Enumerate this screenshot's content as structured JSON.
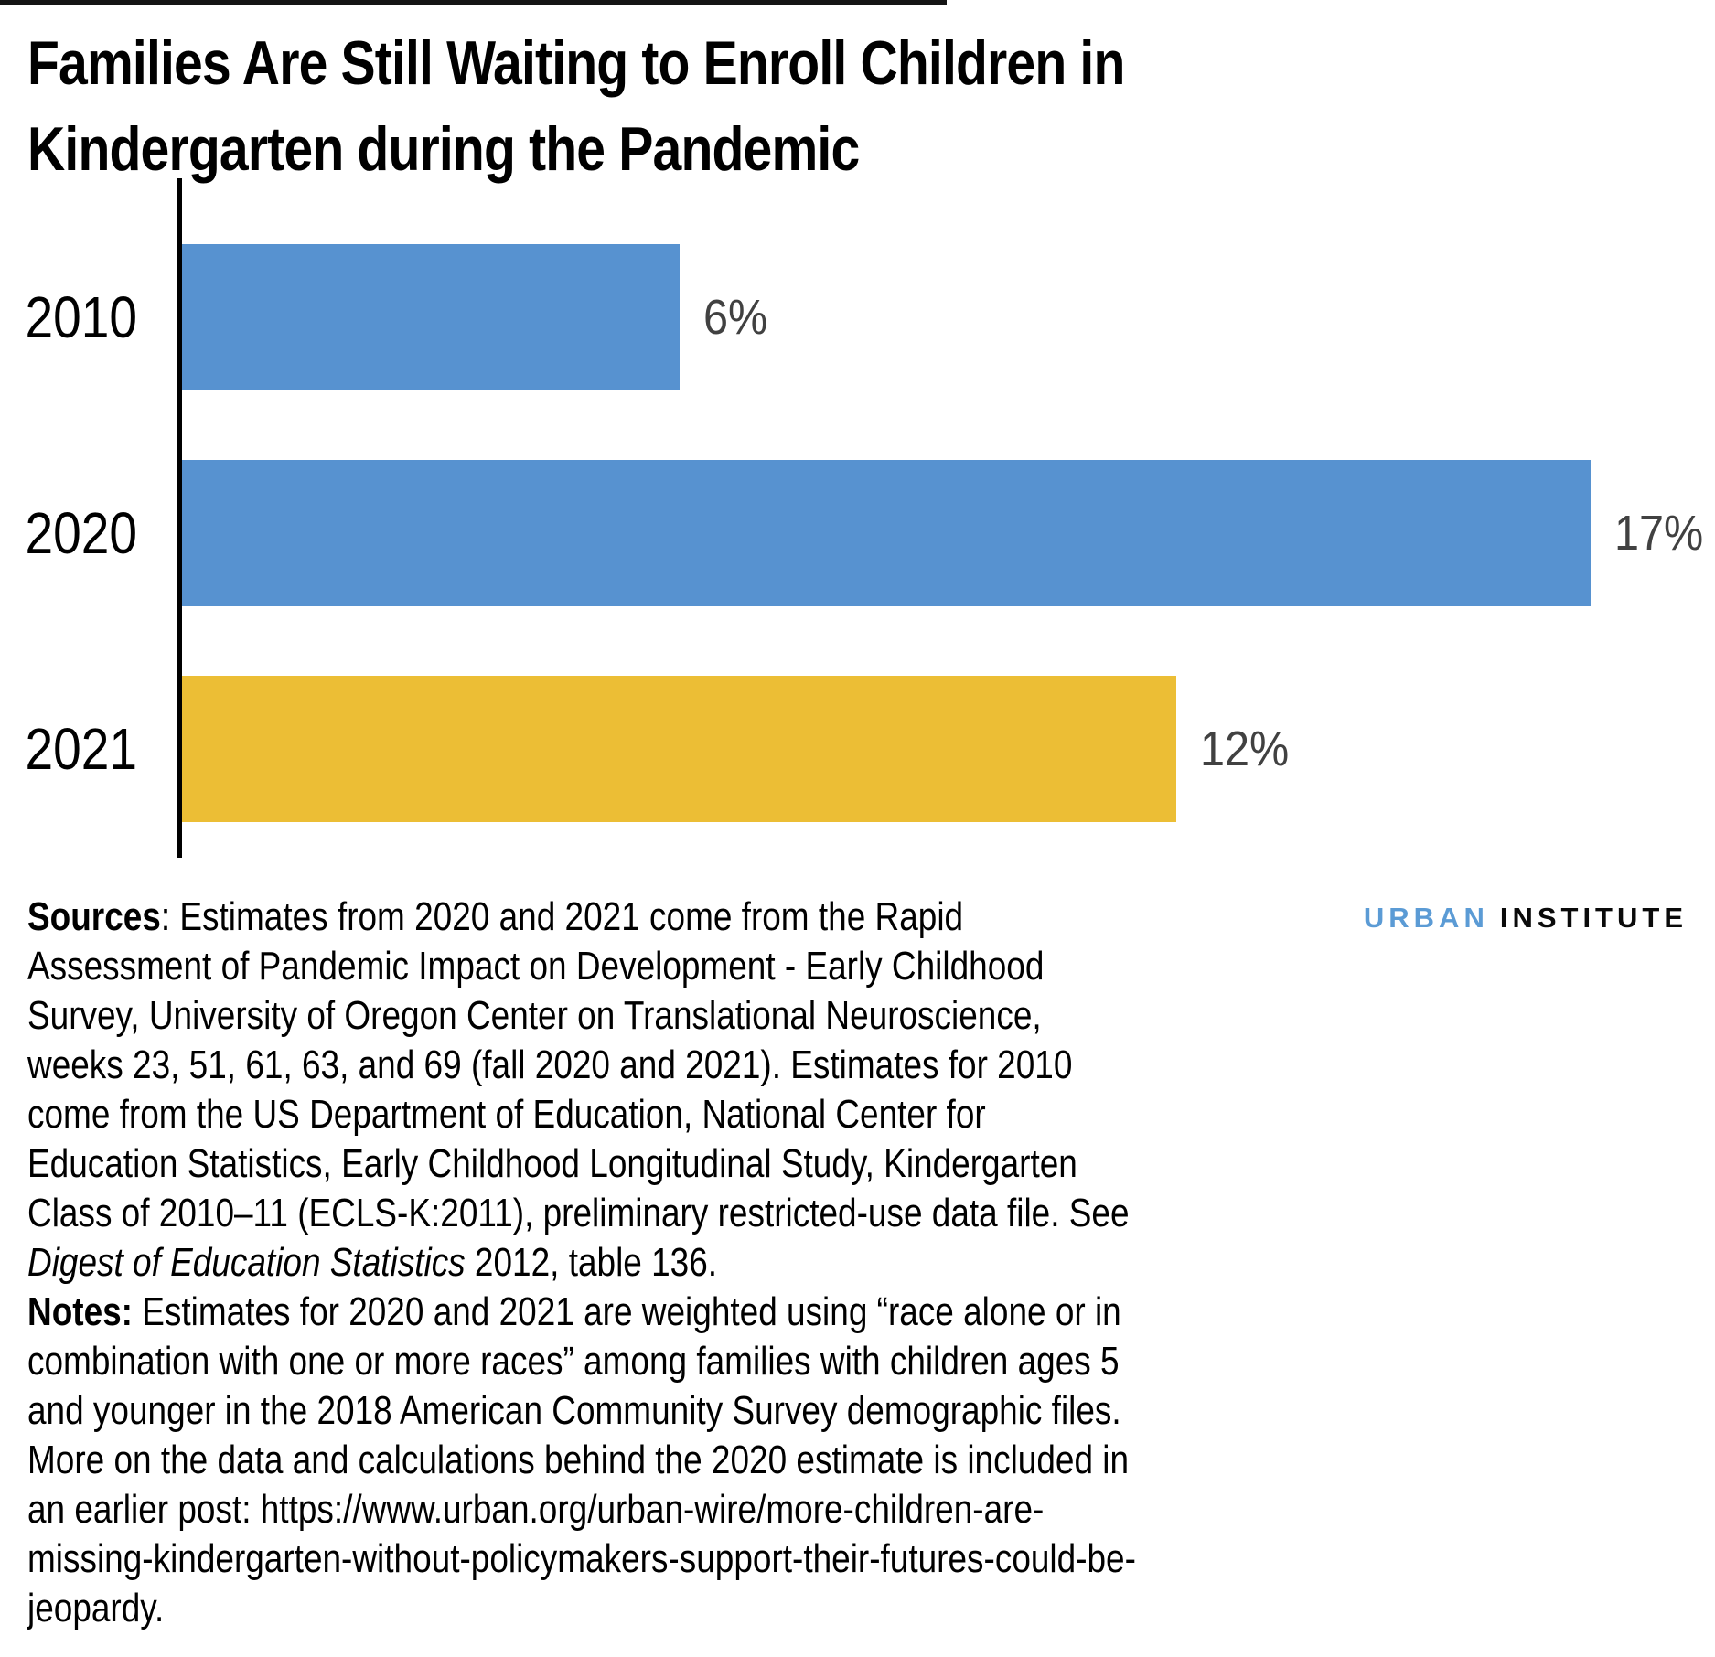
{
  "title": {
    "lines": [
      "Families Are Still Waiting to Enroll Children in",
      "Kindergarten during the Pandemic"
    ]
  },
  "chart_data": {
    "type": "bar",
    "orientation": "horizontal",
    "title": "Families Are Still Waiting to Enroll Children in Kindergarten during the Pandemic",
    "categories": [
      "2010",
      "2020",
      "2021"
    ],
    "values": [
      6,
      17,
      12
    ],
    "value_labels": [
      "6%",
      "17%",
      "12%"
    ],
    "bar_colors": [
      "#5792d0",
      "#5792d0",
      "#ecbe35"
    ],
    "xlabel": "",
    "ylabel": "",
    "xlim": [
      0,
      18.5
    ],
    "grid": false,
    "legend": "none",
    "value_label_color": "#414141",
    "axis_line_color": "#000000"
  },
  "footer": {
    "sources_label": "Sources",
    "sources_text_1": ": Estimates from 2020 and 2021 come from the Rapid Assessment of Pandemic Impact on Development - Early Childhood Survey, University of Oregon Center on Translational Neuroscience, weeks 23, 51, 61, 63, and 69 (fall 2020 and 2021). Estimates for 2010 come from the US Department of Education, National Center for Education Statistics, Early Childhood Longitudinal Study, Kindergarten Class of 2010–11 (ECLS-K:2011), preliminary restricted-use data file. See ",
    "sources_italic": "Digest of Education Statistics",
    "sources_text_2": " 2012, table 136.",
    "notes_label": "Notes:",
    "notes_text": " Estimates for 2020 and 2021 are weighted using “race alone or in combination with one or more races” among families with children ages 5 and younger in the 2018 American Community Survey demographic files. More on the data and calculations behind the 2020 estimate is included in an earlier post: https://www.urban.org/urban-wire/more-children-are-missing-kindergarten-without-policymakers-support-their-futures-could-be-jeopardy."
  },
  "logo": {
    "urban": "URBAN",
    "institute": "INSTITUTE",
    "urban_color": "#5b9bd5",
    "institute_color": "#0a0a0a"
  }
}
